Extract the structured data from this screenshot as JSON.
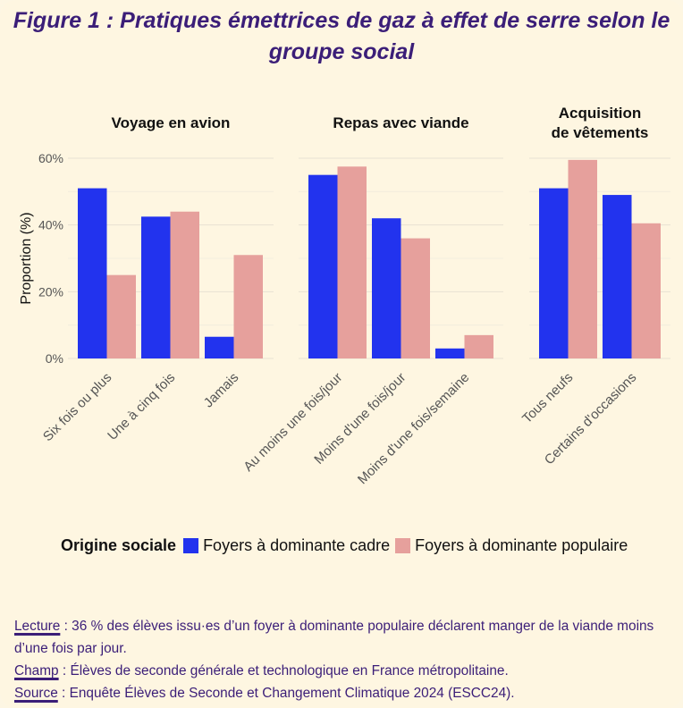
{
  "title": "Figure 1 : Pratiques émettrices de gaz à effet de serre selon le groupe social",
  "chart_data": {
    "type": "bar",
    "ylabel": "Proportion (%)",
    "ylim": [
      0,
      60
    ],
    "yticks": [
      "0%",
      "20%",
      "40%",
      "60%"
    ],
    "ytick_values": [
      0,
      20,
      40,
      60
    ],
    "grid": true,
    "legend_title": "Origine sociale",
    "legend_position": "bottom",
    "series_names": [
      "Foyers à dominante cadre",
      "Foyers à dominante populaire"
    ],
    "colors": [
      "#2233ee",
      "#e6a09c"
    ],
    "panels": [
      {
        "title": "Voyage en avion",
        "categories": [
          "Six fois ou plus",
          "Une à cinq fois",
          "Jamais"
        ],
        "series": [
          {
            "name": "Foyers à dominante cadre",
            "values": [
              51,
              42.5,
              6.5
            ]
          },
          {
            "name": "Foyers à dominante populaire",
            "values": [
              25,
              44,
              31
            ]
          }
        ]
      },
      {
        "title": "Repas avec viande",
        "categories": [
          "Au moins une fois/jour",
          "Moins d'une fois/jour",
          "Moins d'une fois/semaine"
        ],
        "series": [
          {
            "name": "Foyers à dominante cadre",
            "values": [
              55,
              42,
              3
            ]
          },
          {
            "name": "Foyers à dominante populaire",
            "values": [
              57.5,
              36,
              7
            ]
          }
        ]
      },
      {
        "title": "Acquisition de vêtements",
        "title_lines": [
          "Acquisition",
          "de vêtements"
        ],
        "categories": [
          "Tous neufs",
          "Certains d'occasions"
        ],
        "series": [
          {
            "name": "Foyers à dominante cadre",
            "values": [
              51,
              49
            ]
          },
          {
            "name": "Foyers à dominante populaire",
            "values": [
              59.5,
              40.5
            ]
          }
        ]
      }
    ]
  },
  "notes": {
    "lecture_label": "Lecture",
    "lecture_text": " : 36 % des élèves issu·es d’un foyer à dominante populaire déclarent manger de la viande moins d’une fois par jour.",
    "champ_label": "Champ",
    "champ_text": " : Élèves de seconde générale et technologique en France métropolitaine.",
    "source_label": "Source",
    "source_text": " : Enquête Élèves de Seconde et Changement Climatique 2024 (ESCC24)."
  }
}
